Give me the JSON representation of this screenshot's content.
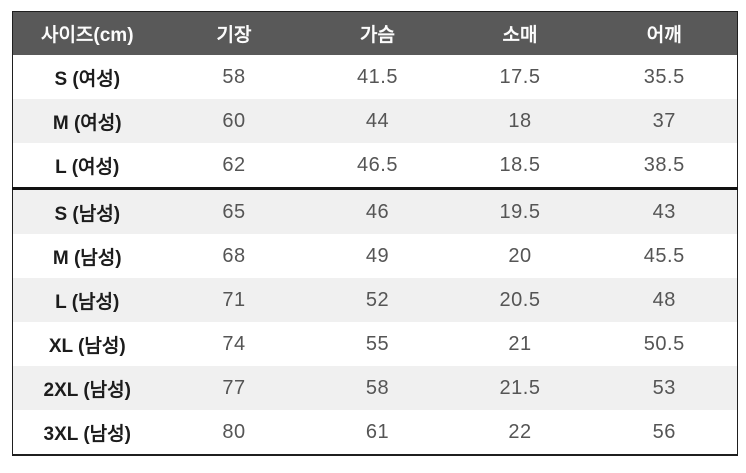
{
  "chart_data": {
    "type": "table",
    "columns": [
      "사이즈(cm)",
      "기장",
      "가슴",
      "소매",
      "어깨"
    ],
    "rows": [
      {
        "size": "S (여성)",
        "group": "여성",
        "values": [
          "58",
          "41.5",
          "17.5",
          "35.5"
        ]
      },
      {
        "size": "M (여성)",
        "group": "여성",
        "values": [
          "60",
          "44",
          "18",
          "37"
        ]
      },
      {
        "size": "L (여성)",
        "group": "여성",
        "values": [
          "62",
          "46.5",
          "18.5",
          "38.5"
        ]
      },
      {
        "size": "S (남성)",
        "group": "남성",
        "section_start": true,
        "values": [
          "65",
          "46",
          "19.5",
          "43"
        ]
      },
      {
        "size": "M (남성)",
        "group": "남성",
        "values": [
          "68",
          "49",
          "20",
          "45.5"
        ]
      },
      {
        "size": "L (남성)",
        "group": "남성",
        "values": [
          "71",
          "52",
          "20.5",
          "48"
        ]
      },
      {
        "size": "XL (남성)",
        "group": "남성",
        "values": [
          "74",
          "55",
          "21",
          "50.5"
        ]
      },
      {
        "size": "2XL (남성)",
        "group": "남성",
        "values": [
          "77",
          "58",
          "21.5",
          "53"
        ]
      },
      {
        "size": "3XL (남성)",
        "group": "남성",
        "values": [
          "80",
          "61",
          "22",
          "56"
        ]
      }
    ]
  },
  "colors": {
    "header_bg": "#595959",
    "header_text": "#fcfcfc",
    "row_stripe": "#f0f0f0",
    "label_text": "#1c1c1c",
    "value_text": "#555555",
    "outer_border": "#1f1f1f",
    "section_divider": "#111111"
  }
}
